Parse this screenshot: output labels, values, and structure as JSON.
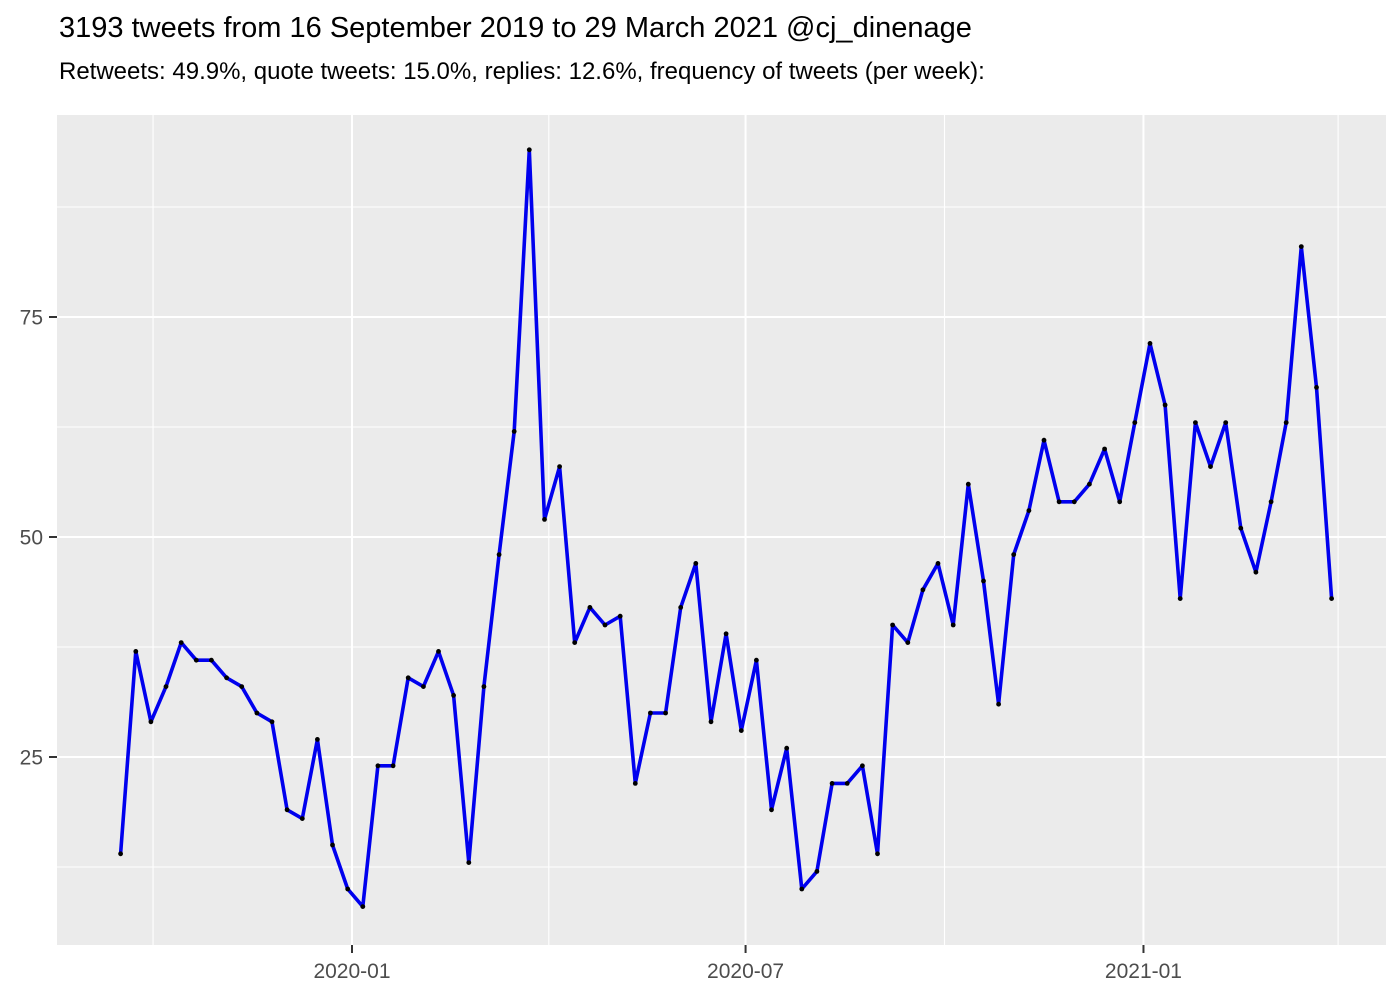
{
  "title": "3193 tweets from 16 September 2019 to 29 March 2021 @cj_dinenage",
  "subtitle": "Retweets: 49.9%, quote tweets: 15.0%, replies: 12.6%, frequency of tweets (per week):",
  "chart_data": {
    "type": "line",
    "title": "3193 tweets from 16 September 2019 to 29 March 2021 @cj_dinenage",
    "subtitle": "Retweets: 49.9%, quote tweets: 15.0%, replies: 12.6%, frequency of tweets (per week):",
    "xlabel": "",
    "ylabel": "",
    "x_start_date": "2019-09-16",
    "x_end_date": "2021-03-29",
    "interval_days": 7,
    "values": [
      14,
      37,
      29,
      33,
      38,
      36,
      36,
      34,
      33,
      30,
      29,
      19,
      18,
      27,
      15,
      10,
      8,
      24,
      24,
      34,
      33,
      37,
      32,
      13,
      33,
      48,
      62,
      94,
      52,
      58,
      38,
      42,
      40,
      41,
      22,
      30,
      30,
      42,
      47,
      29,
      39,
      28,
      36,
      19,
      26,
      10,
      12,
      22,
      22,
      24,
      14,
      40,
      38,
      44,
      47,
      40,
      56,
      45,
      31,
      48,
      53,
      61,
      54,
      54,
      56,
      60,
      54,
      63,
      72,
      65,
      43,
      63,
      58,
      63,
      51,
      46,
      54,
      63,
      83,
      67,
      43
    ],
    "ylim": [
      3.5,
      98
    ],
    "y_ticks": [
      {
        "value": 25,
        "label": "25"
      },
      {
        "value": 50,
        "label": "50"
      },
      {
        "value": 75,
        "label": "75"
      }
    ],
    "y_minor": [
      12.5,
      37.5,
      62.5,
      87.5
    ],
    "x_ticks": [
      {
        "date": "2020-01-01",
        "label": "2020-01"
      },
      {
        "date": "2020-07-01",
        "label": "2020-07"
      },
      {
        "date": "2021-01-01",
        "label": "2021-01"
      }
    ],
    "x_minor": [
      "2019-10-01",
      "2020-04-01",
      "2020-10-01",
      "2021-04-01"
    ],
    "grid": true,
    "legend": "none",
    "line_color": "#0000EE",
    "point_color": "#000000",
    "panel_bg": "#EBEBEB",
    "grid_color": "#FFFFFF",
    "axis_text_color": "#4D4D4D",
    "tick_mark_color": "#333333"
  }
}
